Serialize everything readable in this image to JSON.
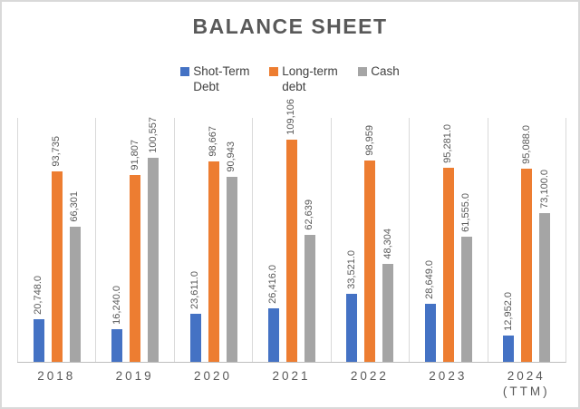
{
  "title": "BALANCE SHEET",
  "chart_data": {
    "type": "bar",
    "title": "BALANCE SHEET",
    "categories": [
      "2018",
      "2019",
      "2020",
      "2021",
      "2022",
      "2023",
      "2024 (TTM)"
    ],
    "series": [
      {
        "name": "Shot-Term Debt",
        "color": "#4472C4",
        "values": [
          20748,
          16240,
          23611,
          26416,
          33521,
          28649,
          12952
        ],
        "labels": [
          "20,748.0",
          "16,240.0",
          "23,611.0",
          "26,416.0",
          "33,521.0",
          "28,649.0",
          "12,952.0"
        ]
      },
      {
        "name": "Long-term debt",
        "color": "#ED7D31",
        "values": [
          93735,
          91807,
          98667,
          109106,
          98959,
          95281,
          95088
        ],
        "labels": [
          "93,735",
          "91,807",
          "98,667",
          "109,106",
          "98,959",
          "95,281.0",
          "95,088.0"
        ]
      },
      {
        "name": "Cash",
        "color": "#A5A5A5",
        "values": [
          66301,
          100557,
          90943,
          62639,
          48304,
          61555,
          73100
        ],
        "labels": [
          "66,301",
          "100,557",
          "90,943",
          "62,639",
          "48,304",
          "61,555.0",
          "73,100.0"
        ]
      }
    ],
    "ylim": [
      0,
      120000
    ],
    "xlabel": "",
    "ylabel": "",
    "legend_position": "top",
    "grid": "vertical-category-separators",
    "gridline_color": "#D9D9D9",
    "axis_line_color": "#BFBFBF",
    "data_label_color": "#595959",
    "title_color": "#595959",
    "legend_text_color": "#404040"
  }
}
